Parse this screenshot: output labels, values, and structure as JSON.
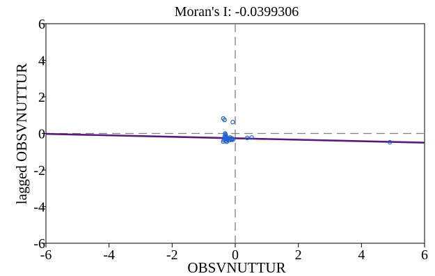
{
  "chart_data": {
    "type": "scatter",
    "title": "Moran's I: -0.0399306",
    "xlabel": "OBSVNUTTUR",
    "ylabel": "lagged OBSVNUTTUR",
    "xlim": [
      -6,
      6
    ],
    "ylim": [
      -6,
      6
    ],
    "xticks": [
      "-6",
      "-4",
      "-2",
      "0",
      "2",
      "4",
      "6"
    ],
    "yticks": [
      "-6",
      "-4",
      "-2",
      "0",
      "2",
      "4",
      "6"
    ],
    "xtick_values": [
      -6,
      -4,
      -2,
      0,
      2,
      4,
      6
    ],
    "ytick_values": [
      -6,
      -4,
      -2,
      0,
      2,
      4,
      6
    ],
    "grid": false,
    "reference_lines": {
      "x": 0,
      "y": 0,
      "style": "dashed",
      "color": "#808080"
    },
    "regression": {
      "slope": -0.0399306,
      "intercept": -0.262,
      "color": "#5a1a7a"
    },
    "marker_color": "#1f5fd6",
    "points": [
      {
        "x": -0.38,
        "y": 0.82
      },
      {
        "x": -0.34,
        "y": 0.74
      },
      {
        "x": -0.08,
        "y": 0.62
      },
      {
        "x": -0.32,
        "y": 0.0
      },
      {
        "x": -0.31,
        "y": -0.06
      },
      {
        "x": -0.3,
        "y": -0.12
      },
      {
        "x": -0.33,
        "y": -0.16
      },
      {
        "x": -0.29,
        "y": -0.2
      },
      {
        "x": -0.31,
        "y": -0.24
      },
      {
        "x": -0.27,
        "y": -0.28
      },
      {
        "x": -0.34,
        "y": -0.3
      },
      {
        "x": -0.25,
        "y": -0.33
      },
      {
        "x": -0.36,
        "y": -0.36
      },
      {
        "x": -0.3,
        "y": -0.4
      },
      {
        "x": -0.22,
        "y": -0.38
      },
      {
        "x": -0.38,
        "y": -0.44
      },
      {
        "x": -0.27,
        "y": -0.45
      },
      {
        "x": -0.18,
        "y": -0.36
      },
      {
        "x": -0.14,
        "y": -0.3
      },
      {
        "x": -0.11,
        "y": -0.34
      },
      {
        "x": -0.09,
        "y": -0.28
      },
      {
        "x": -0.06,
        "y": -0.32
      },
      {
        "x": -0.2,
        "y": -0.25
      },
      {
        "x": -0.16,
        "y": -0.22
      },
      {
        "x": 0.38,
        "y": -0.24
      },
      {
        "x": 0.52,
        "y": -0.22
      },
      {
        "x": 4.9,
        "y": -0.48
      }
    ]
  }
}
